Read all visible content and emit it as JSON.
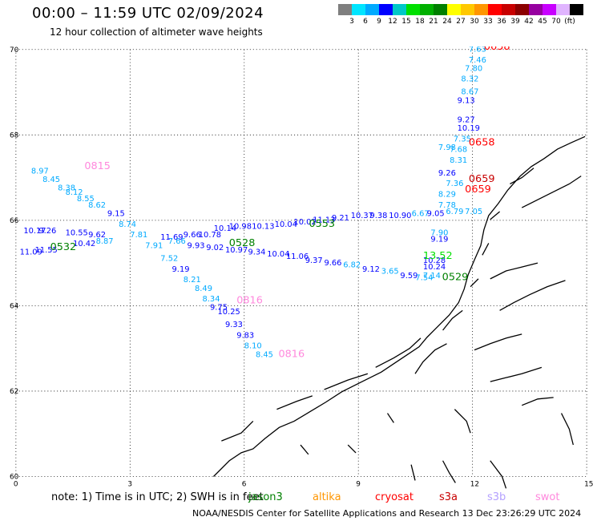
{
  "title": "00:00 – 11:59 UTC 02/09/2024",
  "subtitle": "12 hour collection of altimeter wave heights",
  "colorbar": {
    "colors": [
      "#7f7f7f",
      "#00e5ff",
      "#00aaff",
      "#0000ff",
      "#00c8c8",
      "#00e000",
      "#00b000",
      "#008000",
      "#ffff00",
      "#ffc800",
      "#ff9600",
      "#ff0000",
      "#c80000",
      "#8b0000",
      "#9600a0",
      "#c800ff",
      "#e0b4ff",
      "#000000"
    ],
    "labels": [
      "3",
      "6",
      "9",
      "12",
      "15",
      "18",
      "21",
      "24",
      "27",
      "30",
      "33",
      "36",
      "39",
      "42",
      "45",
      "70",
      "(ft)"
    ]
  },
  "axes": {
    "y_ticks": [
      "70",
      "68",
      "66",
      "64",
      "62",
      "60"
    ],
    "x_ticks": [
      "0",
      "3",
      "6",
      "9",
      "12",
      "15"
    ],
    "xlim": [
      0,
      15
    ],
    "ylim": [
      60,
      70
    ]
  },
  "note": "note: 1) Time is in UTC; 2) SWH is in feet",
  "satellites": [
    {
      "name": "jason3",
      "color": "#008000"
    },
    {
      "name": "altika",
      "color": "#ff9600"
    },
    {
      "name": "cryosat",
      "color": "#ff0000"
    },
    {
      "name": "s3a",
      "color": "#c80000"
    },
    {
      "name": "s3b",
      "color": "#b4a0ff"
    },
    {
      "name": "swot",
      "color": "#ff88dd"
    }
  ],
  "credit": "NOAA/NESDIS Center for Satellite Applications and Research   13 Dec 23:26:29 UTC 2024",
  "observations": [
    {
      "lon": 0.4,
      "lat": 67.1,
      "swh": "8.97",
      "color": "#00aaff"
    },
    {
      "lon": 0.7,
      "lat": 66.9,
      "swh": "8.45",
      "color": "#00aaff"
    },
    {
      "lon": 1.1,
      "lat": 66.7,
      "swh": "8.38",
      "color": "#00aaff"
    },
    {
      "lon": 1.3,
      "lat": 66.6,
      "swh": "8.12",
      "color": "#00aaff"
    },
    {
      "lon": 1.6,
      "lat": 66.45,
      "swh": "8.55",
      "color": "#00aaff"
    },
    {
      "lon": 1.9,
      "lat": 66.3,
      "swh": "8.62",
      "color": "#00aaff"
    },
    {
      "lon": 2.4,
      "lat": 66.1,
      "swh": "9.15",
      "color": "#0000ff"
    },
    {
      "lon": 2.7,
      "lat": 65.85,
      "swh": "8.74",
      "color": "#00aaff"
    },
    {
      "lon": 3.0,
      "lat": 65.6,
      "swh": "7.81",
      "color": "#00aaff"
    },
    {
      "lon": 3.4,
      "lat": 65.35,
      "swh": "7.91",
      "color": "#00aaff"
    },
    {
      "lon": 3.8,
      "lat": 65.05,
      "swh": "7.52",
      "color": "#00aaff"
    },
    {
      "lon": 4.1,
      "lat": 64.8,
      "swh": "9.19",
      "color": "#0000ff"
    },
    {
      "lon": 4.4,
      "lat": 64.55,
      "swh": "8.21",
      "color": "#00aaff"
    },
    {
      "lon": 4.7,
      "lat": 64.35,
      "swh": "8.49",
      "color": "#00aaff"
    },
    {
      "lon": 4.9,
      "lat": 64.1,
      "swh": "8.34",
      "color": "#00aaff"
    },
    {
      "lon": 5.1,
      "lat": 63.9,
      "swh": "9.75",
      "color": "#0000ff"
    },
    {
      "lon": 5.3,
      "lat": 63.8,
      "swh": "10.25",
      "color": "#0000ff"
    },
    {
      "lon": 5.5,
      "lat": 63.5,
      "swh": "9.33",
      "color": "#0000ff"
    },
    {
      "lon": 5.8,
      "lat": 63.25,
      "swh": "9.83",
      "color": "#0000ff"
    },
    {
      "lon": 6.0,
      "lat": 63.0,
      "swh": "8.10",
      "color": "#00aaff"
    },
    {
      "lon": 6.3,
      "lat": 62.8,
      "swh": "8.45",
      "color": "#00aaff"
    },
    {
      "lon": 0.2,
      "lat": 65.7,
      "swh": "10.17",
      "color": "#0000ff"
    },
    {
      "lon": 0.6,
      "lat": 65.7,
      "swh": "9.26",
      "color": "#0000ff"
    },
    {
      "lon": 1.3,
      "lat": 65.65,
      "swh": "10.55",
      "color": "#0000ff"
    },
    {
      "lon": 1.9,
      "lat": 65.6,
      "swh": "9.62",
      "color": "#0000ff"
    },
    {
      "lon": 1.5,
      "lat": 65.4,
      "swh": "10.42",
      "color": "#0000ff"
    },
    {
      "lon": 2.1,
      "lat": 65.45,
      "swh": "8.87",
      "color": "#00aaff"
    },
    {
      "lon": 0.1,
      "lat": 65.2,
      "swh": "11.09",
      "color": "#0000ff"
    },
    {
      "lon": 0.5,
      "lat": 65.25,
      "swh": "11.55",
      "color": "#0000ff"
    },
    {
      "lon": 3.8,
      "lat": 65.55,
      "swh": "11.69",
      "color": "#0000ff"
    },
    {
      "lon": 4.4,
      "lat": 65.6,
      "swh": "9.66",
      "color": "#0000ff"
    },
    {
      "lon": 4.8,
      "lat": 65.6,
      "swh": "10.78",
      "color": "#0000ff"
    },
    {
      "lon": 4.0,
      "lat": 65.45,
      "swh": "7.66",
      "color": "#00aaff"
    },
    {
      "lon": 4.5,
      "lat": 65.35,
      "swh": "9.93",
      "color": "#0000ff"
    },
    {
      "lon": 5.0,
      "lat": 65.3,
      "swh": "9.02",
      "color": "#0000ff"
    },
    {
      "lon": 5.5,
      "lat": 65.25,
      "swh": "10.97",
      "color": "#0000ff"
    },
    {
      "lon": 6.1,
      "lat": 65.2,
      "swh": "9.34",
      "color": "#0000ff"
    },
    {
      "lon": 6.6,
      "lat": 65.15,
      "swh": "10.04",
      "color": "#0000ff"
    },
    {
      "lon": 7.1,
      "lat": 65.1,
      "swh": "11.06",
      "color": "#0000ff"
    },
    {
      "lon": 7.6,
      "lat": 65.0,
      "swh": "9.37",
      "color": "#0000ff"
    },
    {
      "lon": 8.1,
      "lat": 64.95,
      "swh": "9.66",
      "color": "#0000ff"
    },
    {
      "lon": 8.6,
      "lat": 64.9,
      "swh": "6.82",
      "color": "#00aaff"
    },
    {
      "lon": 9.1,
      "lat": 64.8,
      "swh": "9.12",
      "color": "#0000ff"
    },
    {
      "lon": 9.6,
      "lat": 64.75,
      "swh": "3.65",
      "color": "#00aaff"
    },
    {
      "lon": 10.1,
      "lat": 64.65,
      "swh": "9.59",
      "color": "#0000ff"
    },
    {
      "lon": 10.5,
      "lat": 64.6,
      "swh": "7.54",
      "color": "#00aaff"
    },
    {
      "lon": 5.2,
      "lat": 65.75,
      "swh": "10.14",
      "color": "#0000ff"
    },
    {
      "lon": 5.6,
      "lat": 65.8,
      "swh": "10.98",
      "color": "#0000ff"
    },
    {
      "lon": 6.2,
      "lat": 65.8,
      "swh": "10.13",
      "color": "#0000ff"
    },
    {
      "lon": 6.8,
      "lat": 65.85,
      "swh": "10.04",
      "color": "#0000ff"
    },
    {
      "lon": 7.3,
      "lat": 65.9,
      "swh": "10.02",
      "color": "#0000ff"
    },
    {
      "lon": 7.8,
      "lat": 65.95,
      "swh": "11.13",
      "color": "#0000ff"
    },
    {
      "lon": 8.3,
      "lat": 66.0,
      "swh": "9.21",
      "color": "#0000ff"
    },
    {
      "lon": 8.8,
      "lat": 66.05,
      "swh": "10.37",
      "color": "#0000ff"
    },
    {
      "lon": 9.3,
      "lat": 66.05,
      "swh": "9.38",
      "color": "#0000ff"
    },
    {
      "lon": 9.8,
      "lat": 66.05,
      "swh": "10.90",
      "color": "#0000ff"
    },
    {
      "lon": 10.4,
      "lat": 66.1,
      "swh": "6.67",
      "color": "#00aaff"
    },
    {
      "lon": 10.8,
      "lat": 66.1,
      "swh": "9.05",
      "color": "#0000ff"
    },
    {
      "lon": 11.3,
      "lat": 66.15,
      "swh": "6.79",
      "color": "#00aaff"
    },
    {
      "lon": 11.8,
      "lat": 66.15,
      "swh": "7.05",
      "color": "#00aaff"
    },
    {
      "lon": 11.9,
      "lat": 69.95,
      "swh": "7.63",
      "color": "#00aaff"
    },
    {
      "lon": 11.9,
      "lat": 69.7,
      "swh": "7.46",
      "color": "#00aaff"
    },
    {
      "lon": 11.8,
      "lat": 69.5,
      "swh": "7.80",
      "color": "#00aaff"
    },
    {
      "lon": 11.7,
      "lat": 69.25,
      "swh": "8.32",
      "color": "#00aaff"
    },
    {
      "lon": 11.7,
      "lat": 68.95,
      "swh": "8.67",
      "color": "#00aaff"
    },
    {
      "lon": 11.6,
      "lat": 68.75,
      "swh": "9.13",
      "color": "#0000ff"
    },
    {
      "lon": 11.6,
      "lat": 68.3,
      "swh": "9.27",
      "color": "#0000ff"
    },
    {
      "lon": 11.6,
      "lat": 68.1,
      "swh": "10.19",
      "color": "#0000ff"
    },
    {
      "lon": 11.5,
      "lat": 67.85,
      "swh": "7.35",
      "color": "#00aaff"
    },
    {
      "lon": 11.4,
      "lat": 67.6,
      "swh": "7.68",
      "color": "#00aaff"
    },
    {
      "lon": 11.4,
      "lat": 67.35,
      "swh": "8.31",
      "color": "#00aaff"
    },
    {
      "lon": 11.3,
      "lat": 66.8,
      "swh": "7.36",
      "color": "#00aaff"
    },
    {
      "lon": 11.1,
      "lat": 66.55,
      "swh": "8.29",
      "color": "#00aaff"
    },
    {
      "lon": 11.1,
      "lat": 66.3,
      "swh": "7.78",
      "color": "#00aaff"
    },
    {
      "lon": 11.1,
      "lat": 67.05,
      "swh": "9.26",
      "color": "#0000ff"
    },
    {
      "lon": 11.1,
      "lat": 67.65,
      "swh": "7.98",
      "color": "#00aaff"
    },
    {
      "lon": 10.9,
      "lat": 65.65,
      "swh": "7.90",
      "color": "#00aaff"
    },
    {
      "lon": 10.9,
      "lat": 65.5,
      "swh": "9.19",
      "color": "#0000ff"
    },
    {
      "lon": 10.7,
      "lat": 65.0,
      "swh": "10.28",
      "color": "#0000ff"
    },
    {
      "lon": 10.7,
      "lat": 64.85,
      "swh": "10.24",
      "color": "#0000ff"
    },
    {
      "lon": 10.7,
      "lat": 64.65,
      "swh": "7.14",
      "color": "#00aaff"
    }
  ],
  "pass_labels": [
    {
      "lon": 1.8,
      "lat": 67.2,
      "text": "0815",
      "color": "#ff88dd"
    },
    {
      "lon": 12.3,
      "lat": 70.0,
      "text": "0658",
      "color": "#ff0000"
    },
    {
      "lon": 11.9,
      "lat": 67.75,
      "text": "0658",
      "color": "#ff0000"
    },
    {
      "lon": 11.9,
      "lat": 66.9,
      "text": "0659",
      "color": "#c80000"
    },
    {
      "lon": 11.8,
      "lat": 66.65,
      "text": "0659",
      "color": "#ff0000"
    },
    {
      "lon": 7.7,
      "lat": 65.85,
      "text": "0553",
      "color": "#008000"
    },
    {
      "lon": 5.6,
      "lat": 65.4,
      "text": "0528",
      "color": "#008000"
    },
    {
      "lon": 0.9,
      "lat": 65.3,
      "text": "0532",
      "color": "#008000"
    },
    {
      "lon": 5.8,
      "lat": 64.05,
      "text": "0816",
      "color": "#ff88dd"
    },
    {
      "lon": 6.9,
      "lat": 62.8,
      "text": "0816",
      "color": "#ff88dd"
    },
    {
      "lon": 11.2,
      "lat": 64.6,
      "text": "0529",
      "color": "#008000"
    },
    {
      "lon": 10.7,
      "lat": 65.1,
      "text": "13.52",
      "color": "#00e000"
    }
  ]
}
